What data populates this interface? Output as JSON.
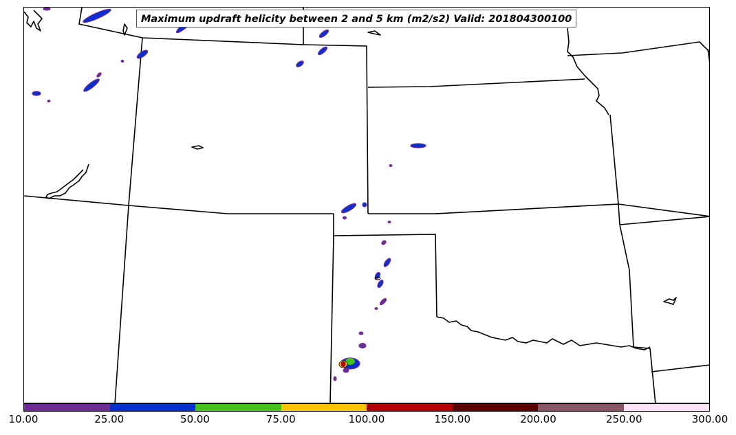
{
  "title": "Maximum updraft helicity between 2 and 5 km (m2/s2) Valid: 201804300100",
  "colorbar": {
    "ticks": [
      "10.00",
      "25.00",
      "50.00",
      "75.00",
      "100.00",
      "150.00",
      "200.00",
      "250.00",
      "300.00"
    ],
    "colors": [
      "#6f2a96",
      "#0a2fcf",
      "#44c41a",
      "#fcc400",
      "#b20000",
      "#5a0000",
      "#8a5666",
      "#fde3f6"
    ]
  },
  "palette": {
    "level_10": "#6f2a96",
    "level_25": "#0a2fcf",
    "level_50": "#44c41a",
    "level_75": "#fcc400",
    "level_100": "#b20000",
    "boundary": "#000000"
  }
}
